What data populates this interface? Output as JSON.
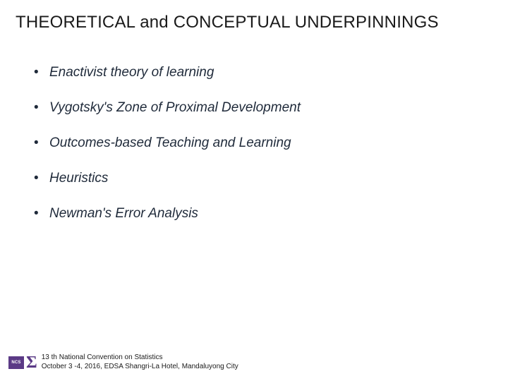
{
  "title": "THEORETICAL and CONCEPTUAL UNDERPINNINGS",
  "bullets": [
    "Enactivist theory of learning",
    "Vygotsky's Zone of Proximal Development",
    "Outcomes-based Teaching and Learning",
    "Heuristics",
    "Newman's Error Analysis"
  ],
  "footer": {
    "logo_text": "NCS",
    "sigma": "Σ",
    "line1": "13 th National Convention on Statistics",
    "line2": "October 3 -4, 2016, EDSA Shangri-La Hotel, Mandaluyong City"
  },
  "colors": {
    "text_primary": "#1a1a1a",
    "bullet_text": "#1f2a3a",
    "accent_purple": "#5b3a86",
    "background": "#ffffff"
  },
  "typography": {
    "title_fontsize": 24,
    "bullet_fontsize": 19,
    "footer_fontsize": 10,
    "bullet_style": "italic"
  }
}
